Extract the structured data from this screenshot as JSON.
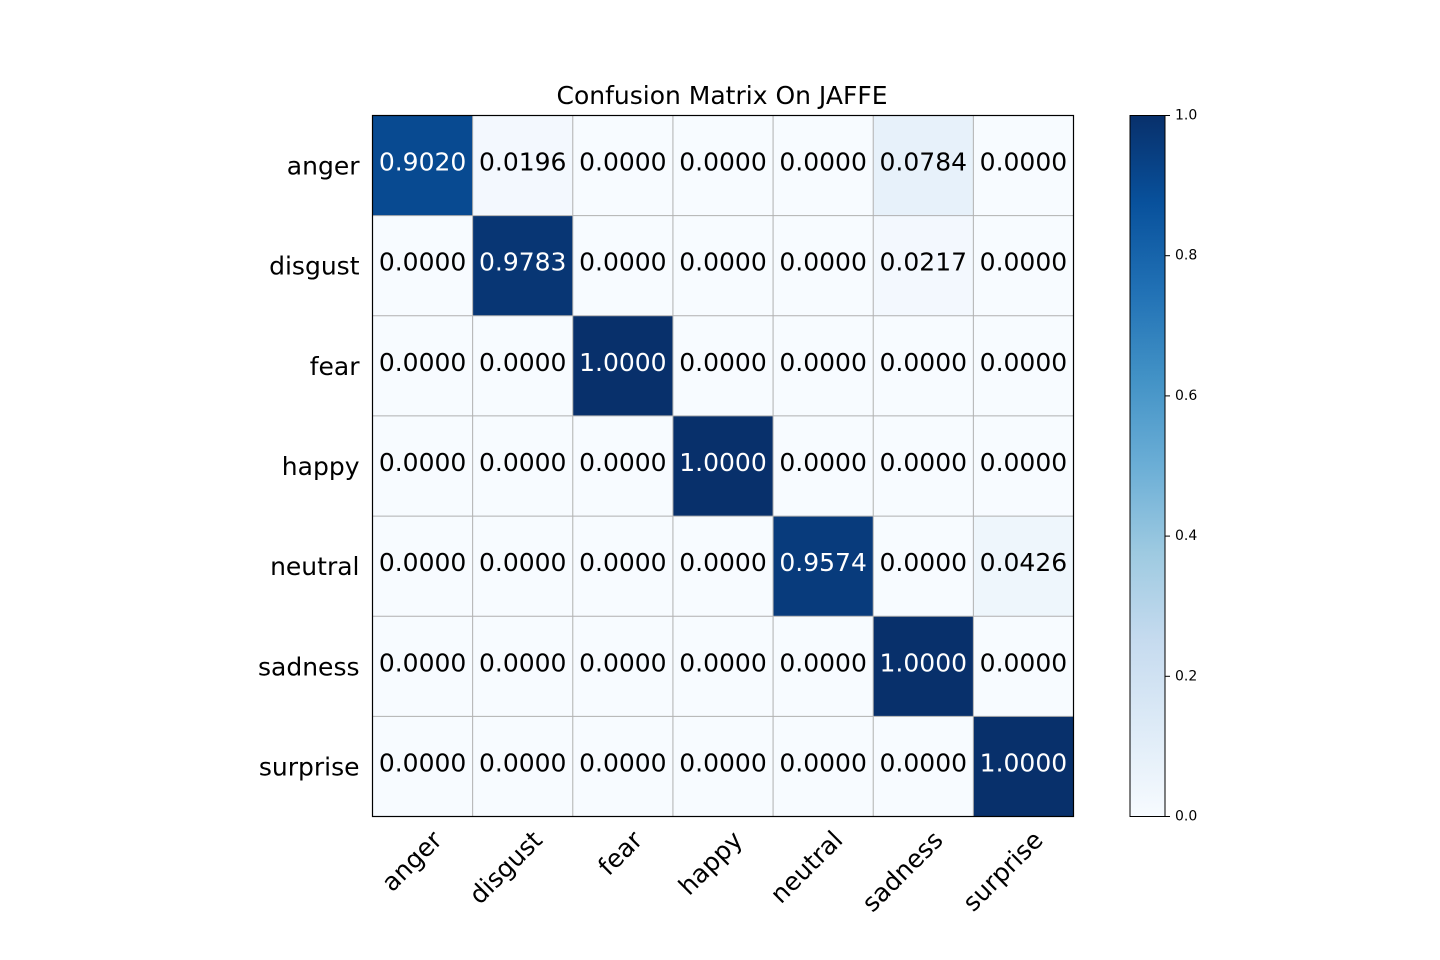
{
  "chart_data": {
    "type": "heatmap",
    "title": "Confusion Matrix On JAFFE",
    "xlabel": "",
    "ylabel": "",
    "row_labels": [
      "anger",
      "disgust",
      "fear",
      "happy",
      "neutral",
      "sadness",
      "surprise"
    ],
    "col_labels": [
      "anger",
      "disgust",
      "fear",
      "happy",
      "neutral",
      "sadness",
      "surprise"
    ],
    "values": [
      [
        0.902,
        0.0196,
        0.0,
        0.0,
        0.0,
        0.0784,
        0.0
      ],
      [
        0.0,
        0.9783,
        0.0,
        0.0,
        0.0,
        0.0217,
        0.0
      ],
      [
        0.0,
        0.0,
        1.0,
        0.0,
        0.0,
        0.0,
        0.0
      ],
      [
        0.0,
        0.0,
        0.0,
        1.0,
        0.0,
        0.0,
        0.0
      ],
      [
        0.0,
        0.0,
        0.0,
        0.0,
        0.9574,
        0.0,
        0.0426
      ],
      [
        0.0,
        0.0,
        0.0,
        0.0,
        0.0,
        1.0,
        0.0
      ],
      [
        0.0,
        0.0,
        0.0,
        0.0,
        0.0,
        0.0,
        1.0
      ]
    ],
    "value_format_decimals": 4,
    "colormap": "Blues",
    "vmin": 0.0,
    "vmax": 1.0,
    "colorbar_ticks": [
      "0.0",
      "0.2",
      "0.4",
      "0.6",
      "0.8",
      "1.0"
    ],
    "grid": true,
    "x_tick_rotation_deg": 45
  }
}
